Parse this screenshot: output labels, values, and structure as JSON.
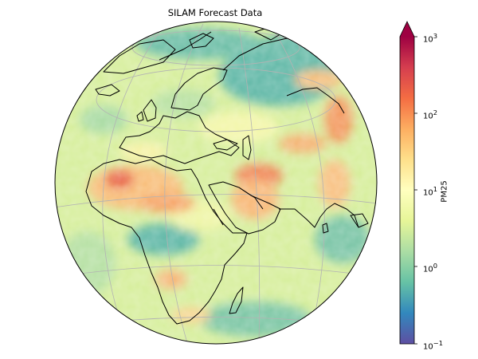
{
  "figure": {
    "title": "SILAM Forecast Data"
  },
  "colorbar": {
    "label": "PM25",
    "scale": "log",
    "range": [
      0.1,
      1000
    ],
    "extend": "max",
    "colormap": "Spectral_r",
    "ticks": [
      {
        "base": "10",
        "exp": "3"
      },
      {
        "base": "10",
        "exp": "2"
      },
      {
        "base": "10",
        "exp": "1"
      },
      {
        "base": "10",
        "exp": "0"
      },
      {
        "base": "10",
        "exp": "−1"
      }
    ],
    "colors": [
      "#5e4fa2",
      "#3288bd",
      "#66c2a5",
      "#abdda4",
      "#e6f598",
      "#ffffbf",
      "#fee08b",
      "#fdae61",
      "#f46d43",
      "#d53e4f",
      "#9e0142"
    ]
  },
  "map": {
    "projection": "orthographic",
    "variable": "PM25",
    "coastlines": true,
    "gridlines": true,
    "colors": {
      "ocean_low": "#a7d9a3",
      "clean_air": "#5fb7a6",
      "dust": "#f39a6a",
      "coastline": "#000000",
      "gridline": "#b0b0b0"
    }
  }
}
